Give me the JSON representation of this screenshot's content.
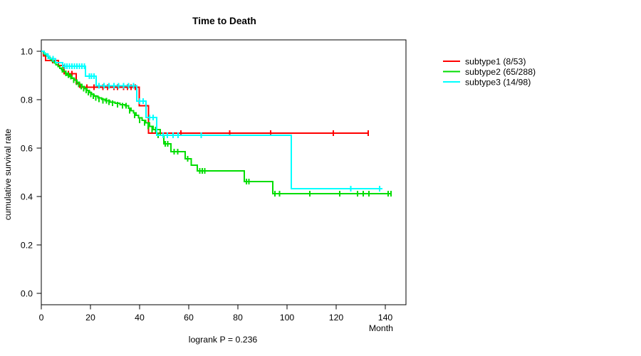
{
  "figure": {
    "background": "#ffffff",
    "text_color": "#000000"
  },
  "chart_data": {
    "type": "line",
    "variant": "kaplan-meier-survival-step",
    "title": "Time to Death",
    "xlabel": "Month",
    "ylabel": "cumulative survival rate",
    "annotation": "logrank P = 0.236",
    "xlim": [
      0,
      148.4
    ],
    "ylim": [
      -0.046,
      1.046
    ],
    "x_ticks": [
      "0",
      "20",
      "40",
      "60",
      "80",
      "100",
      "120",
      "140"
    ],
    "y_ticks": [
      "0.0",
      "0.2",
      "0.4",
      "0.6",
      "0.8",
      "1.0"
    ],
    "grid": false,
    "legend_position": "right-outside-top",
    "series": [
      {
        "name": "subtype1",
        "legend_label": "subtype1 (8/53)",
        "events": 8,
        "n": 53,
        "color": "#ff0000",
        "steps": [
          [
            0,
            1.0
          ],
          [
            0.9,
            0.981
          ],
          [
            1.7,
            0.962
          ],
          [
            7,
            0.941
          ],
          [
            9.3,
            0.908
          ],
          [
            14.2,
            0.866
          ],
          [
            15.6,
            0.851
          ],
          [
            39.8,
            0.775
          ],
          [
            43.6,
            0.662
          ]
        ],
        "end_month": 133,
        "censor_marks": [
          [
            4.6,
            0.962
          ],
          [
            11,
            0.908
          ],
          [
            12.5,
            0.908
          ],
          [
            18.5,
            0.851
          ],
          [
            21.5,
            0.851
          ],
          [
            25,
            0.851
          ],
          [
            27,
            0.851
          ],
          [
            29.5,
            0.851
          ],
          [
            31,
            0.851
          ],
          [
            33.5,
            0.851
          ],
          [
            35,
            0.851
          ],
          [
            36.5,
            0.851
          ],
          [
            38.3,
            0.851
          ],
          [
            56.8,
            0.662
          ],
          [
            76.6,
            0.662
          ],
          [
            93.3,
            0.662
          ],
          [
            118.8,
            0.662
          ],
          [
            133,
            0.662
          ]
        ]
      },
      {
        "name": "subtype2",
        "legend_label": "subtype2 (65/288)",
        "events": 65,
        "n": 288,
        "color": "#00dd00",
        "steps": [
          [
            0,
            1.0
          ],
          [
            0.8,
            0.993
          ],
          [
            1.5,
            0.986
          ],
          [
            2.2,
            0.979
          ],
          [
            3,
            0.972
          ],
          [
            3.8,
            0.965
          ],
          [
            4.5,
            0.958
          ],
          [
            5.3,
            0.951
          ],
          [
            6,
            0.944
          ],
          [
            6.8,
            0.937
          ],
          [
            7.5,
            0.93
          ],
          [
            8.2,
            0.923
          ],
          [
            9,
            0.916
          ],
          [
            9.8,
            0.909
          ],
          [
            10.5,
            0.902
          ],
          [
            11.5,
            0.895
          ],
          [
            12.5,
            0.888
          ],
          [
            13.5,
            0.881
          ],
          [
            14.5,
            0.872
          ],
          [
            15.5,
            0.863
          ],
          [
            16.5,
            0.854
          ],
          [
            17.5,
            0.846
          ],
          [
            18.5,
            0.838
          ],
          [
            19.5,
            0.83
          ],
          [
            20.5,
            0.822
          ],
          [
            21.5,
            0.815
          ],
          [
            23,
            0.808
          ],
          [
            24.5,
            0.801
          ],
          [
            26,
            0.795
          ],
          [
            28,
            0.79
          ],
          [
            30,
            0.785
          ],
          [
            32,
            0.78
          ],
          [
            34,
            0.775
          ],
          [
            35.5,
            0.765
          ],
          [
            36.5,
            0.755
          ],
          [
            37.5,
            0.745
          ],
          [
            38.5,
            0.735
          ],
          [
            39.5,
            0.725
          ],
          [
            41,
            0.715
          ],
          [
            42.5,
            0.705
          ],
          [
            44,
            0.69
          ],
          [
            45.5,
            0.676
          ],
          [
            48.4,
            0.653
          ],
          [
            49.8,
            0.618
          ],
          [
            52.8,
            0.585
          ],
          [
            58.6,
            0.556
          ],
          [
            61,
            0.53
          ],
          [
            63.5,
            0.506
          ],
          [
            82.6,
            0.462
          ],
          [
            94.2,
            0.412
          ]
        ],
        "end_month": 142.6,
        "censor_marks": [
          [
            8.5,
            0.923
          ],
          [
            10,
            0.909
          ],
          [
            11,
            0.902
          ],
          [
            12,
            0.895
          ],
          [
            13.2,
            0.881
          ],
          [
            14.3,
            0.872
          ],
          [
            15.2,
            0.863
          ],
          [
            16.2,
            0.854
          ],
          [
            17.2,
            0.846
          ],
          [
            18.2,
            0.838
          ],
          [
            19.2,
            0.83
          ],
          [
            20.2,
            0.822
          ],
          [
            21.2,
            0.815
          ],
          [
            22.2,
            0.808
          ],
          [
            23.5,
            0.801
          ],
          [
            25,
            0.795
          ],
          [
            26.5,
            0.795
          ],
          [
            27.5,
            0.79
          ],
          [
            29,
            0.785
          ],
          [
            31,
            0.78
          ],
          [
            33,
            0.775
          ],
          [
            34.5,
            0.775
          ],
          [
            36,
            0.755
          ],
          [
            38,
            0.735
          ],
          [
            40,
            0.715
          ],
          [
            42,
            0.705
          ],
          [
            43.5,
            0.69
          ],
          [
            45,
            0.676
          ],
          [
            46.5,
            0.676
          ],
          [
            47.5,
            0.653
          ],
          [
            50.5,
            0.618
          ],
          [
            51.5,
            0.618
          ],
          [
            54,
            0.585
          ],
          [
            55.5,
            0.585
          ],
          [
            59.5,
            0.556
          ],
          [
            64.5,
            0.506
          ],
          [
            65.5,
            0.506
          ],
          [
            66.5,
            0.506
          ],
          [
            83.5,
            0.462
          ],
          [
            84.5,
            0.462
          ],
          [
            95,
            0.412
          ],
          [
            97,
            0.412
          ],
          [
            109.3,
            0.412
          ],
          [
            121.4,
            0.412
          ],
          [
            128.7,
            0.412
          ],
          [
            131,
            0.412
          ],
          [
            133.3,
            0.412
          ],
          [
            141.2,
            0.412
          ],
          [
            142.3,
            0.412
          ]
        ]
      },
      {
        "name": "subtype3",
        "legend_label": "subtype3 (14/98)",
        "events": 14,
        "n": 98,
        "color": "#00ffff",
        "steps": [
          [
            0,
            1.0
          ],
          [
            1.2,
            0.99
          ],
          [
            2.3,
            0.98
          ],
          [
            3.5,
            0.969
          ],
          [
            5.8,
            0.953
          ],
          [
            8.7,
            0.938
          ],
          [
            18,
            0.897
          ],
          [
            22.3,
            0.858
          ],
          [
            38.8,
            0.794
          ],
          [
            42.6,
            0.727
          ],
          [
            47,
            0.653
          ],
          [
            101.7,
            0.433
          ]
        ],
        "end_month": 138.8,
        "censor_marks": [
          [
            2.8,
            0.98
          ],
          [
            4.8,
            0.969
          ],
          [
            9.5,
            0.938
          ],
          [
            10.5,
            0.938
          ],
          [
            11.5,
            0.938
          ],
          [
            12.5,
            0.938
          ],
          [
            13.5,
            0.938
          ],
          [
            14.5,
            0.938
          ],
          [
            15.5,
            0.938
          ],
          [
            16.5,
            0.938
          ],
          [
            17.5,
            0.938
          ],
          [
            19.5,
            0.897
          ],
          [
            20.5,
            0.897
          ],
          [
            21.5,
            0.897
          ],
          [
            23.5,
            0.858
          ],
          [
            25.5,
            0.858
          ],
          [
            27.5,
            0.858
          ],
          [
            29.5,
            0.858
          ],
          [
            31.5,
            0.858
          ],
          [
            33.5,
            0.858
          ],
          [
            35.5,
            0.858
          ],
          [
            37.5,
            0.858
          ],
          [
            40,
            0.794
          ],
          [
            41.5,
            0.794
          ],
          [
            44,
            0.727
          ],
          [
            45.5,
            0.727
          ],
          [
            49.5,
            0.653
          ],
          [
            51.3,
            0.653
          ],
          [
            53.6,
            0.653
          ],
          [
            55.6,
            0.653
          ],
          [
            65,
            0.653
          ],
          [
            126,
            0.433
          ],
          [
            137.7,
            0.433
          ]
        ]
      }
    ]
  }
}
